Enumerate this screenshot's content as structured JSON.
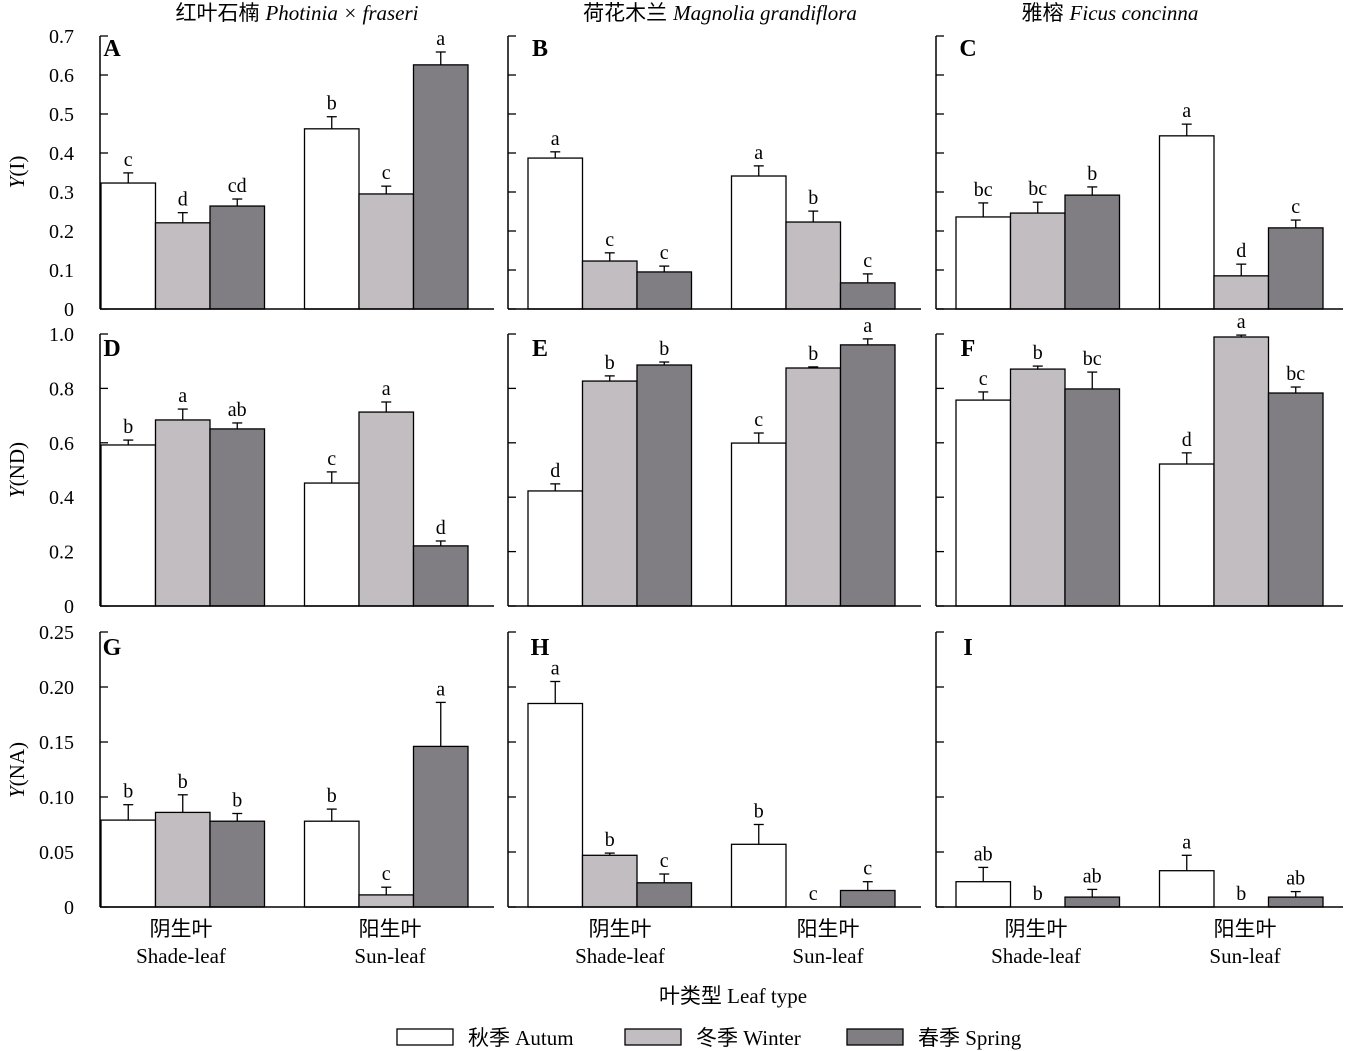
{
  "chart_data": {
    "type": "bar",
    "columns": [
      {
        "title_zh": "红叶石楠",
        "title_latin": "Photinia × fraseri"
      },
      {
        "title_zh": "荷花木兰",
        "title_latin": "Magnolia grandiflora"
      },
      {
        "title_zh": "雅榕",
        "title_latin": "Ficus concinna"
      }
    ],
    "categories": [
      {
        "zh": "阴生叶",
        "en": "Shade-leaf"
      },
      {
        "zh": "阳生叶",
        "en": "Sun-leaf"
      }
    ],
    "series": [
      {
        "name": "秋季 Autum",
        "color": "#ffffff"
      },
      {
        "name": "冬季 Winter",
        "color": "#c1bdc1"
      },
      {
        "name": "春季 Spring",
        "color": "#807e83"
      }
    ],
    "xlabel": "叶类型 Leaf type",
    "legend": "bottom-center",
    "rows": [
      {
        "ylabel": "Y(I)",
        "ylim": [
          0,
          0.7
        ],
        "tick_labels": [
          "0",
          "0.1",
          "0.2",
          "0.3",
          "0.4",
          "0.5",
          "0.6",
          "0.7"
        ],
        "panels": [
          {
            "label": "A",
            "values": [
              [
                0.323,
                0.462
              ],
              [
                0.221,
                0.295
              ],
              [
                0.264,
                0.626
              ]
            ],
            "errors": [
              [
                0.026,
                0.031
              ],
              [
                0.026,
                0.02
              ],
              [
                0.018,
                0.033
              ]
            ],
            "letters": [
              [
                "c",
                "b"
              ],
              [
                "d",
                "c"
              ],
              [
                "cd",
                "a"
              ]
            ]
          },
          {
            "label": "B",
            "values": [
              [
                0.387,
                0.341
              ],
              [
                0.123,
                0.223
              ],
              [
                0.095,
                0.067
              ]
            ],
            "errors": [
              [
                0.016,
                0.026
              ],
              [
                0.021,
                0.028
              ],
              [
                0.015,
                0.023
              ]
            ],
            "letters": [
              [
                "a",
                "a"
              ],
              [
                "c",
                "b"
              ],
              [
                "c",
                "c"
              ]
            ]
          },
          {
            "label": "C",
            "values": [
              [
                0.236,
                0.444
              ],
              [
                0.246,
                0.085
              ],
              [
                0.292,
                0.208
              ]
            ],
            "errors": [
              [
                0.036,
                0.03
              ],
              [
                0.028,
                0.03
              ],
              [
                0.021,
                0.02
              ]
            ],
            "letters": [
              [
                "bc",
                "a"
              ],
              [
                "bc",
                "d"
              ],
              [
                "b",
                "c"
              ]
            ]
          }
        ]
      },
      {
        "ylabel": "Y(ND)",
        "ylim": [
          0,
          1.0
        ],
        "tick_labels": [
          "0",
          "0.2",
          "0.4",
          "0.6",
          "0.8",
          "1.0"
        ],
        "panels": [
          {
            "label": "D",
            "values": [
              [
                0.592,
                0.452
              ],
              [
                0.684,
                0.713
              ],
              [
                0.651,
                0.221
              ]
            ],
            "errors": [
              [
                0.018,
                0.041
              ],
              [
                0.04,
                0.037
              ],
              [
                0.022,
                0.018
              ]
            ],
            "letters": [
              [
                "b",
                "c"
              ],
              [
                "a",
                "a"
              ],
              [
                "ab",
                "d"
              ]
            ]
          },
          {
            "label": "E",
            "values": [
              [
                0.423,
                0.599
              ],
              [
                0.827,
                0.875
              ],
              [
                0.886,
                0.96
              ]
            ],
            "errors": [
              [
                0.026,
                0.037
              ],
              [
                0.019,
                0.004
              ],
              [
                0.011,
                0.022
              ]
            ],
            "letters": [
              [
                "d",
                "c"
              ],
              [
                "b",
                "b"
              ],
              [
                "b",
                "a"
              ]
            ]
          },
          {
            "label": "F",
            "values": [
              [
                0.757,
                0.522
              ],
              [
                0.871,
                0.989
              ],
              [
                0.798,
                0.783
              ]
            ],
            "errors": [
              [
                0.03,
                0.041
              ],
              [
                0.011,
                0.007
              ],
              [
                0.062,
                0.022
              ]
            ],
            "letters": [
              [
                "c",
                "d"
              ],
              [
                "b",
                "a"
              ],
              [
                "bc",
                "bc"
              ]
            ]
          }
        ]
      },
      {
        "ylabel": "Y(NA)",
        "ylim": [
          0,
          0.25
        ],
        "tick_labels": [
          "0",
          "0.05",
          "0.10",
          "0.15",
          "0.20",
          "0.25"
        ],
        "panels": [
          {
            "label": "G",
            "values": [
              [
                0.079,
                0.078
              ],
              [
                0.086,
                0.011
              ],
              [
                0.078,
                0.146
              ]
            ],
            "errors": [
              [
                0.014,
                0.011
              ],
              [
                0.016,
                0.007
              ],
              [
                0.007,
                0.04
              ]
            ],
            "letters": [
              [
                "b",
                "b"
              ],
              [
                "b",
                "c"
              ],
              [
                "b",
                "a"
              ]
            ]
          },
          {
            "label": "H",
            "values": [
              [
                0.185,
                0.057
              ],
              [
                0.047,
                0.0
              ],
              [
                0.022,
                0.015
              ]
            ],
            "errors": [
              [
                0.02,
                0.018
              ],
              [
                0.002,
                0.0
              ],
              [
                0.008,
                0.008
              ]
            ],
            "letters": [
              [
                "a",
                "b"
              ],
              [
                "b",
                "c"
              ],
              [
                "c",
                "c"
              ]
            ]
          },
          {
            "label": "I",
            "values": [
              [
                0.023,
                0.033
              ],
              [
                0.0,
                0.0
              ],
              [
                0.009,
                0.009
              ]
            ],
            "errors": [
              [
                0.013,
                0.014
              ],
              [
                0.0,
                0.0
              ],
              [
                0.007,
                0.005
              ]
            ],
            "letters": [
              [
                "ab",
                "a"
              ],
              [
                "b",
                "b"
              ],
              [
                "ab",
                "ab"
              ]
            ]
          }
        ]
      }
    ]
  }
}
